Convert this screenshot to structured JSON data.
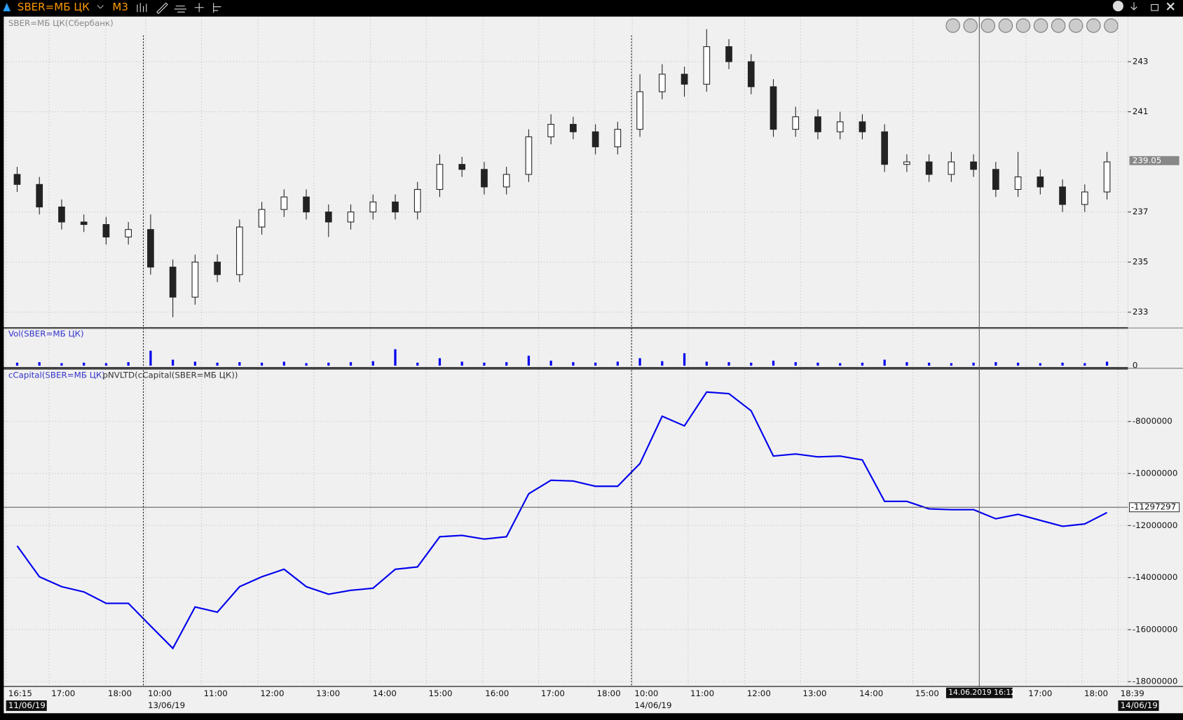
{
  "toolbar": {
    "symbol": "SBER=МБ ЦК",
    "timeframe": "M3"
  },
  "chart_data": [
    {
      "type": "candlestick",
      "title": "SBER=МБ ЦК(Сбербанк)",
      "open": [
        238.5,
        238.1,
        237.2,
        236.6,
        236.5,
        236.0,
        236.3,
        234.8,
        233.6,
        235.0,
        234.5,
        236.4,
        237.1,
        237.6,
        237.0,
        236.6,
        237.0,
        237.4,
        237.0,
        237.9,
        238.9,
        238.7,
        238.0,
        238.5,
        240.0,
        240.5,
        240.2,
        239.6,
        240.3,
        241.8,
        242.5,
        242.1,
        243.6,
        243.0,
        242.0,
        240.3,
        240.8,
        240.2,
        240.6,
        240.2,
        238.9,
        239.0,
        238.5,
        239.0,
        238.7,
        237.9,
        238.4,
        238.0,
        237.3,
        237.8
      ],
      "high": [
        238.8,
        238.4,
        237.5,
        236.9,
        236.8,
        236.6,
        236.9,
        235.1,
        235.3,
        235.3,
        236.7,
        237.4,
        237.9,
        237.9,
        237.3,
        237.3,
        237.7,
        237.7,
        238.2,
        239.3,
        239.2,
        239.0,
        238.8,
        240.3,
        240.9,
        240.8,
        240.5,
        240.6,
        242.5,
        242.9,
        242.8,
        244.3,
        243.9,
        243.3,
        242.3,
        241.2,
        241.1,
        241.0,
        240.9,
        240.5,
        239.3,
        239.3,
        239.4,
        239.3,
        239.0,
        239.4,
        238.7,
        238.3,
        238.1,
        239.4
      ],
      "low": [
        237.8,
        236.9,
        236.3,
        236.2,
        235.7,
        235.7,
        234.5,
        232.8,
        233.3,
        234.2,
        234.2,
        236.1,
        236.8,
        236.7,
        236.0,
        236.3,
        236.7,
        236.7,
        236.7,
        237.6,
        238.4,
        237.7,
        237.7,
        238.2,
        239.7,
        239.9,
        239.3,
        239.3,
        240.0,
        241.5,
        241.6,
        241.8,
        242.7,
        241.7,
        240.0,
        240.0,
        239.9,
        239.9,
        239.9,
        238.6,
        238.6,
        238.2,
        238.2,
        238.4,
        237.6,
        237.6,
        237.7,
        237.0,
        237.0,
        237.5
      ],
      "close": [
        238.1,
        237.2,
        236.6,
        236.5,
        236.0,
        236.3,
        234.8,
        233.6,
        235.0,
        234.5,
        236.4,
        237.1,
        237.6,
        237.0,
        236.6,
        237.0,
        237.4,
        237.0,
        237.9,
        238.9,
        238.7,
        238.0,
        238.5,
        240.0,
        240.5,
        240.2,
        239.6,
        240.3,
        241.8,
        242.5,
        242.1,
        243.6,
        243.0,
        242.0,
        240.3,
        240.8,
        240.2,
        240.6,
        240.2,
        238.9,
        239.0,
        238.5,
        239.0,
        238.7,
        237.9,
        238.4,
        238.0,
        237.3,
        237.8,
        239.0
      ],
      "up_color": "#ffffff",
      "down_color": "#222222",
      "ylim": [
        232.4,
        244.8
      ],
      "yticks": [
        233,
        235,
        237,
        241,
        243
      ],
      "last_value": 239.05,
      "grid": true
    },
    {
      "type": "bar",
      "title": "Vol(SBER=МБ ЦК)",
      "values": [
        6,
        7,
        5,
        6,
        5,
        7,
        30,
        12,
        8,
        6,
        7,
        6,
        8,
        5,
        6,
        7,
        9,
        33,
        6,
        15,
        8,
        6,
        7,
        20,
        10,
        7,
        6,
        8,
        15,
        9,
        25,
        8,
        7,
        6,
        10,
        7,
        6,
        5,
        6,
        12,
        7,
        6,
        5,
        6,
        7,
        6,
        5,
        6,
        5,
        8
      ],
      "color": "#0000ee",
      "ylim": [
        0,
        50
      ],
      "yticks": [
        0
      ],
      "grid": true
    },
    {
      "type": "line",
      "title": "cCapital(SBER=МБ ЦК)",
      "subtitle": "pNVLTD(cCapital(SBER=МБ ЦК))",
      "series": [
        {
          "color": "#0000ee",
          "values": [
            -12780000,
            -13970000,
            -14350000,
            -14550000,
            -14990000,
            -14990000,
            -15860000,
            -16720000,
            -15130000,
            -15330000,
            -14350000,
            -13970000,
            -13680000,
            -14350000,
            -14640000,
            -14490000,
            -14410000,
            -13680000,
            -13590000,
            -12430000,
            -12380000,
            -12520000,
            -12430000,
            -10780000,
            -10260000,
            -10290000,
            -10490000,
            -10490000,
            -9620000,
            -7800000,
            -8170000,
            -6870000,
            -6930000,
            -7590000,
            -9330000,
            -9250000,
            -9360000,
            -9330000,
            -9480000,
            -11070000,
            -11070000,
            -11360000,
            -11390000,
            -11390000,
            -11740000,
            -11570000,
            -11800000,
            -12030000,
            -11940000,
            -11500000
          ]
        }
      ],
      "ylim": [
        -18170000,
        -6000000
      ],
      "yticks": [
        -8000000,
        -10000000,
        -12000000,
        -14000000,
        -16000000,
        -18000000
      ],
      "last_value": -11297297,
      "grid": true
    }
  ],
  "x_axis": {
    "times": [
      "16:15",
      "17:00",
      "18:00",
      "10:00",
      "11:00",
      "12:00",
      "13:00",
      "14:00",
      "15:00",
      "16:00",
      "17:00",
      "18:00",
      "10:00",
      "11:00",
      "12:00",
      "13:00",
      "14:00",
      "15:00",
      "17:00",
      "18:00",
      "18:39"
    ],
    "dates": [
      "11/06/19",
      "13/06/19",
      "14/06/19",
      "14/06/19"
    ],
    "cursor": "14.06.2019 16:12"
  }
}
